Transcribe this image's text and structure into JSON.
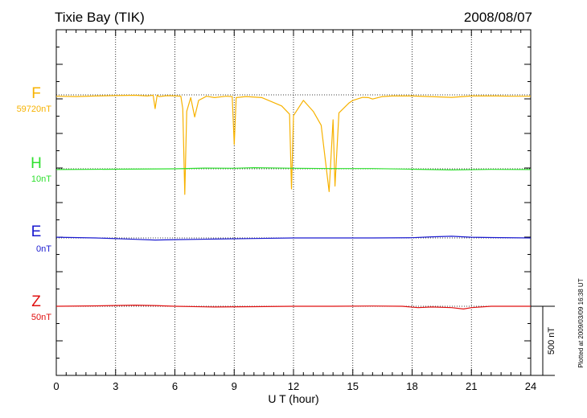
{
  "chart_data": {
    "type": "line",
    "title": "Tixie Bay (TIK)",
    "date": "2008/08/07",
    "xlabel": "U T (hour)",
    "xlim": [
      0,
      24
    ],
    "xticks": [
      "0",
      "3",
      "6",
      "9",
      "12",
      "15",
      "18",
      "21",
      "24"
    ],
    "scale_bar_label": "500 nT",
    "footer": "Plotted at 2009/03/09 16:38 UT",
    "series": [
      {
        "name": "F",
        "baseline_label": "59720nT",
        "color": "#f7b200",
        "values_rel_nT": [
          [
            0,
            -10
          ],
          [
            1,
            -12
          ],
          [
            2,
            -8
          ],
          [
            3,
            -5
          ],
          [
            4,
            -3
          ],
          [
            4.6,
            -8
          ],
          [
            4.9,
            -3
          ],
          [
            5.0,
            -100
          ],
          [
            5.1,
            -3
          ],
          [
            5.2,
            -12
          ],
          [
            5.6,
            -6
          ],
          [
            6.1,
            -8
          ],
          [
            6.3,
            -10
          ],
          [
            6.4,
            -100
          ],
          [
            6.5,
            -720
          ],
          [
            6.6,
            -120
          ],
          [
            6.8,
            -20
          ],
          [
            7.0,
            -160
          ],
          [
            7.2,
            -40
          ],
          [
            7.6,
            -10
          ],
          [
            8.0,
            -20
          ],
          [
            8.6,
            -10
          ],
          [
            8.9,
            -12
          ],
          [
            9.0,
            -360
          ],
          [
            9.1,
            -20
          ],
          [
            9.6,
            -12
          ],
          [
            10.4,
            -20
          ],
          [
            11.4,
            -80
          ],
          [
            11.8,
            -140
          ],
          [
            11.9,
            -680
          ],
          [
            12.0,
            -150
          ],
          [
            12.5,
            -40
          ],
          [
            13.0,
            -120
          ],
          [
            13.4,
            -220
          ],
          [
            13.8,
            -700
          ],
          [
            14.0,
            -180
          ],
          [
            14.1,
            -660
          ],
          [
            14.3,
            -130
          ],
          [
            14.8,
            -60
          ],
          [
            15.0,
            -40
          ],
          [
            15.5,
            -18
          ],
          [
            15.8,
            -20
          ],
          [
            16.0,
            -30
          ],
          [
            16.5,
            -12
          ],
          [
            17.0,
            -8
          ],
          [
            18.0,
            -8
          ],
          [
            20.0,
            -18
          ],
          [
            21.0,
            -8
          ],
          [
            22.3,
            -8
          ],
          [
            23.0,
            -10
          ],
          [
            24,
            -10
          ]
        ]
      },
      {
        "name": "H",
        "baseline_label": "10nT",
        "color": "#2ee02e",
        "values_rel_nT": [
          [
            0,
            -5
          ],
          [
            3,
            -3
          ],
          [
            6,
            0
          ],
          [
            7.5,
            5
          ],
          [
            9,
            4
          ],
          [
            10,
            8
          ],
          [
            12,
            4
          ],
          [
            14,
            2
          ],
          [
            16,
            2
          ],
          [
            18,
            -3
          ],
          [
            20,
            -8
          ],
          [
            22,
            -4
          ],
          [
            24,
            -5
          ]
        ]
      },
      {
        "name": "E",
        "baseline_label": "0nT",
        "color": "#1a1ad0",
        "values_rel_nT": [
          [
            0,
            5
          ],
          [
            2,
            0
          ],
          [
            4,
            -10
          ],
          [
            5,
            -15
          ],
          [
            6,
            -12
          ],
          [
            8,
            -8
          ],
          [
            10,
            -4
          ],
          [
            12,
            0
          ],
          [
            14,
            0
          ],
          [
            16,
            0
          ],
          [
            18,
            2
          ],
          [
            19,
            8
          ],
          [
            20,
            12
          ],
          [
            21,
            5
          ],
          [
            22,
            3
          ],
          [
            24,
            0
          ]
        ]
      },
      {
        "name": "Z",
        "baseline_label": "50nT",
        "color": "#e01010",
        "values_rel_nT": [
          [
            0,
            0
          ],
          [
            2,
            3
          ],
          [
            4,
            8
          ],
          [
            5,
            5
          ],
          [
            6,
            0
          ],
          [
            8,
            -5
          ],
          [
            10,
            -3
          ],
          [
            12,
            0
          ],
          [
            14,
            0
          ],
          [
            16,
            2
          ],
          [
            17.5,
            0
          ],
          [
            18.3,
            -10
          ],
          [
            19,
            -5
          ],
          [
            20,
            -10
          ],
          [
            20.6,
            -20
          ],
          [
            21,
            -10
          ],
          [
            22,
            0
          ],
          [
            24,
            0
          ]
        ]
      }
    ]
  }
}
